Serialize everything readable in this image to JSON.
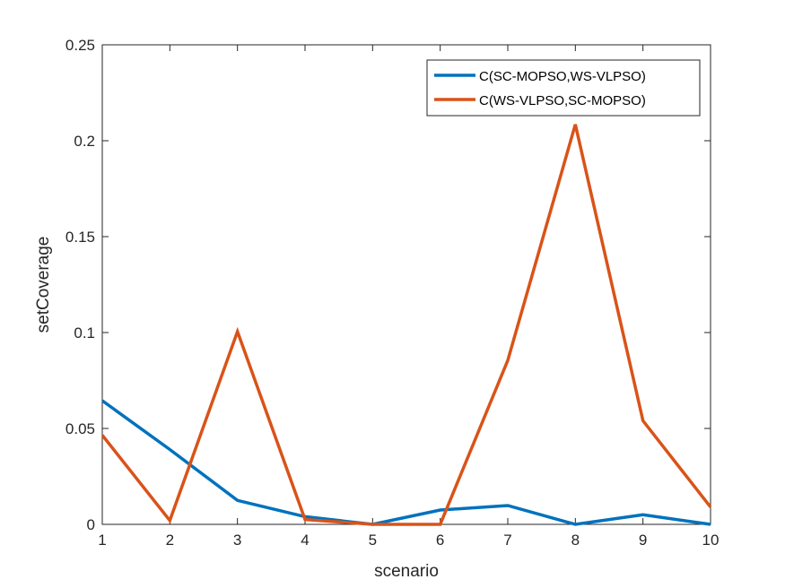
{
  "chart_data": {
    "type": "line",
    "xlabel": "scenario",
    "ylabel": "setCoverage",
    "x": [
      1,
      2,
      3,
      4,
      5,
      6,
      7,
      8,
      9,
      10
    ],
    "xlim": [
      1,
      10
    ],
    "ylim": [
      0,
      0.25
    ],
    "xticks": [
      "1",
      "2",
      "3",
      "4",
      "5",
      "6",
      "7",
      "8",
      "9",
      "10"
    ],
    "yticks": [
      "0",
      "0.05",
      "0.1",
      "0.15",
      "0.2",
      "0.25"
    ],
    "grid": false,
    "legend_position": "top-right",
    "series": [
      {
        "name": "C(SC-MOPSO,WS-VLPSO)",
        "color": "#0072BD",
        "values": [
          0.0645,
          0.039,
          0.0125,
          0.004,
          0.0,
          0.0075,
          0.0098,
          0.0,
          0.005,
          0.0
        ]
      },
      {
        "name": "C(WS-VLPSO,SC-MOPSO)",
        "color": "#D95319",
        "values": [
          0.0465,
          0.002,
          0.1005,
          0.0025,
          0.0,
          0.0,
          0.0855,
          0.2085,
          0.054,
          0.009
        ]
      }
    ]
  }
}
